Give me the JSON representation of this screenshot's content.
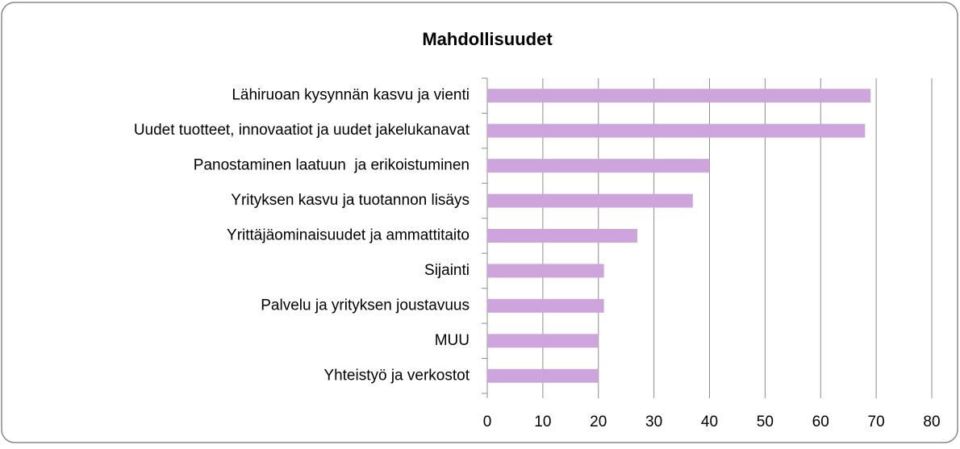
{
  "chart_data": {
    "type": "bar",
    "orientation": "horizontal",
    "title": "Mahdollisuudet",
    "categories": [
      "Lähiruoan kysynnän kasvu ja vienti",
      "Uudet tuotteet, innovaatiot ja uudet jakelukanavat",
      "Panostaminen laatuun  ja erikoistuminen",
      "Yrityksen kasvu ja tuotannon lisäys",
      "Yrittäjäominaisuudet ja ammattitaito",
      "Sijainti",
      "Palvelu ja yrityksen joustavuus",
      "MUU",
      "Yhteistyö ja verkostot"
    ],
    "values": [
      69,
      68,
      40,
      37,
      27,
      21,
      21,
      20,
      20
    ],
    "color": "#cda5dc",
    "xlim": [
      0,
      80
    ],
    "xticks": [
      0,
      10,
      20,
      30,
      40,
      50,
      60,
      70,
      80
    ],
    "grid": true
  }
}
